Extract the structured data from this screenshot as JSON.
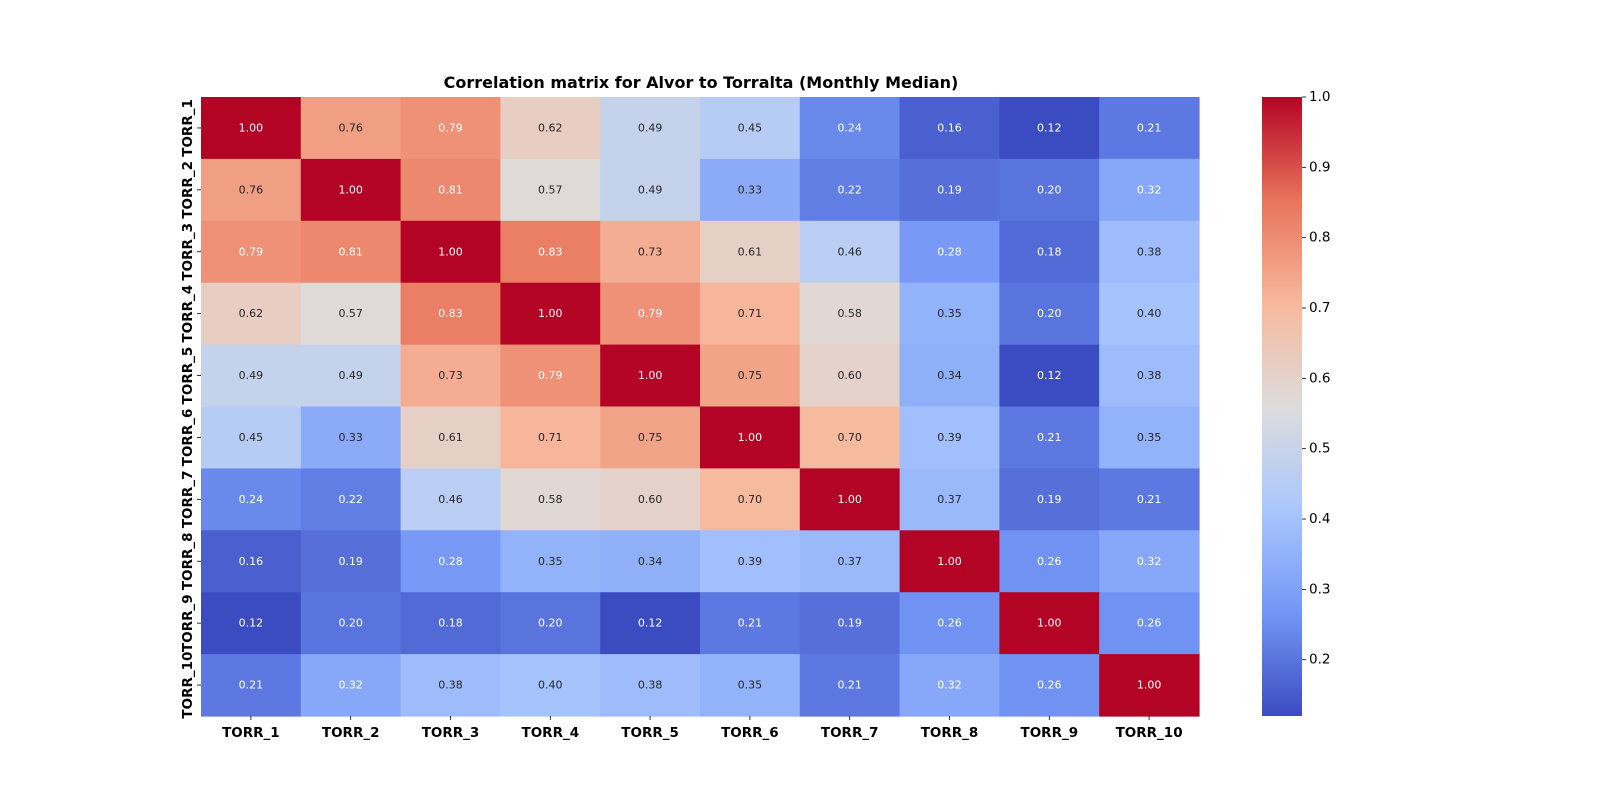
{
  "chart_data": {
    "type": "heatmap",
    "title": "Correlation matrix for Alvor to Torralta (Monthly Median)",
    "xlabel": "",
    "ylabel": "",
    "x_categories": [
      "TORR_1",
      "TORR_2",
      "TORR_3",
      "TORR_4",
      "TORR_5",
      "TORR_6",
      "TORR_7",
      "TORR_8",
      "TORR_9",
      "TORR_10"
    ],
    "y_categories": [
      "TORR_1",
      "TORR_2",
      "TORR_3",
      "TORR_4",
      "TORR_5",
      "TORR_6",
      "TORR_7",
      "TORR_8",
      "TORR_9",
      "TORR_10"
    ],
    "values": [
      [
        1.0,
        0.76,
        0.79,
        0.62,
        0.49,
        0.45,
        0.24,
        0.16,
        0.12,
        0.21
      ],
      [
        0.76,
        1.0,
        0.81,
        0.57,
        0.49,
        0.33,
        0.22,
        0.19,
        0.2,
        0.32
      ],
      [
        0.79,
        0.81,
        1.0,
        0.83,
        0.73,
        0.61,
        0.46,
        0.28,
        0.18,
        0.38
      ],
      [
        0.62,
        0.57,
        0.83,
        1.0,
        0.79,
        0.71,
        0.58,
        0.35,
        0.2,
        0.4
      ],
      [
        0.49,
        0.49,
        0.73,
        0.79,
        1.0,
        0.75,
        0.6,
        0.34,
        0.12,
        0.38
      ],
      [
        0.45,
        0.33,
        0.61,
        0.71,
        0.75,
        1.0,
        0.7,
        0.39,
        0.21,
        0.35
      ],
      [
        0.24,
        0.22,
        0.46,
        0.58,
        0.6,
        0.7,
        1.0,
        0.37,
        0.19,
        0.21
      ],
      [
        0.16,
        0.19,
        0.28,
        0.35,
        0.34,
        0.39,
        0.37,
        1.0,
        0.26,
        0.32
      ],
      [
        0.12,
        0.2,
        0.18,
        0.2,
        0.12,
        0.21,
        0.19,
        0.26,
        1.0,
        0.26
      ],
      [
        0.21,
        0.32,
        0.38,
        0.4,
        0.38,
        0.35,
        0.21,
        0.32,
        0.26,
        1.0
      ]
    ],
    "annotation_format": "0.00",
    "colormap": "coolwarm",
    "colormap_stops": [
      "#3b4cc0",
      "#7396f5",
      "#aac7fd",
      "#dddcdc",
      "#f7b89c",
      "#e7745b",
      "#b40426"
    ],
    "vmin": 0.12,
    "vmax": 1.0,
    "colorbar_ticks": [
      1.0,
      0.9,
      0.8,
      0.7,
      0.6,
      0.5,
      0.4,
      0.3,
      0.2
    ],
    "colorbar_tick_labels": [
      "1.0",
      "0.9",
      "0.8",
      "0.7",
      "0.6",
      "0.5",
      "0.4",
      "0.3",
      "0.2"
    ],
    "colorbar_placement": "right",
    "grid": false
  }
}
